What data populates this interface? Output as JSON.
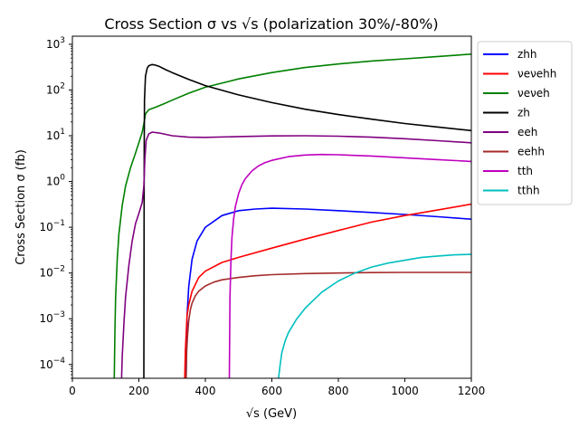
{
  "chart_data": {
    "type": "line",
    "title": "Cross Section σ vs √s (polarization 30%/-80%)",
    "xlabel": "√s (GeV)",
    "ylabel": "Cross Section σ (fb)",
    "xlim": [
      0,
      1200
    ],
    "ylim": [
      5e-05,
      1500
    ],
    "yscale": "log",
    "grid": false,
    "legend": "outside-right",
    "x_ticks": [
      0,
      200,
      400,
      600,
      800,
      1000,
      1200
    ],
    "x_tick_labels": [
      "0",
      "200",
      "400",
      "600",
      "800",
      "1000",
      "1200"
    ],
    "y_ticks": [
      0.0001,
      0.001,
      0.01,
      0.1,
      1,
      10,
      100,
      1000
    ],
    "y_tick_labels": [
      {
        "base": "10",
        "exp": "−4"
      },
      {
        "base": "10",
        "exp": "−3"
      },
      {
        "base": "10",
        "exp": "−2"
      },
      {
        "base": "10",
        "exp": "−1"
      },
      {
        "base": "10",
        "exp": "0"
      },
      {
        "base": "10",
        "exp": "1"
      },
      {
        "base": "10",
        "exp": "2"
      },
      {
        "base": "10",
        "exp": "3"
      }
    ],
    "series": [
      {
        "name": "zhh",
        "color": "#0000ff",
        "x": [
          342,
          345,
          350,
          360,
          375,
          400,
          450,
          500,
          550,
          600,
          700,
          800,
          900,
          1000,
          1100,
          1200
        ],
        "y": [
          5e-05,
          0.0012,
          0.005,
          0.02,
          0.05,
          0.1,
          0.18,
          0.23,
          0.25,
          0.26,
          0.25,
          0.23,
          0.21,
          0.19,
          0.17,
          0.15
        ]
      },
      {
        "name": "νeνehh",
        "color": "#ff0000",
        "x": [
          338,
          340,
          345,
          350,
          360,
          380,
          400,
          450,
          500,
          600,
          700,
          800,
          900,
          1000,
          1100,
          1200
        ],
        "y": [
          5e-05,
          0.0002,
          0.0012,
          0.002,
          0.004,
          0.008,
          0.011,
          0.017,
          0.022,
          0.035,
          0.055,
          0.085,
          0.13,
          0.18,
          0.24,
          0.32
        ]
      },
      {
        "name": "νeνeh",
        "color": "#008000",
        "x": [
          126,
          128,
          130,
          135,
          140,
          150,
          160,
          175,
          190,
          200,
          210,
          216,
          220,
          230,
          250,
          275,
          300,
          350,
          400,
          500,
          600,
          700,
          800,
          900,
          1000,
          1100,
          1200
        ],
        "y": [
          5e-05,
          0.0005,
          0.003,
          0.02,
          0.07,
          0.3,
          0.8,
          2.0,
          4.2,
          7.0,
          12,
          20,
          30,
          37,
          42,
          50,
          60,
          85,
          115,
          175,
          240,
          310,
          370,
          430,
          480,
          540,
          610
        ]
      },
      {
        "name": "zh",
        "color": "#000000",
        "x": [
          215,
          216,
          217,
          220,
          225,
          230,
          240,
          250,
          260,
          280,
          300,
          350,
          400,
          500,
          600,
          700,
          800,
          900,
          1000,
          1100,
          1200
        ],
        "y": [
          5e-05,
          5,
          60,
          200,
          300,
          340,
          360,
          350,
          330,
          280,
          240,
          170,
          125,
          78,
          53,
          38,
          29,
          23,
          18.5,
          15.5,
          13
        ]
      },
      {
        "name": "eeh",
        "color": "#800080",
        "x": [
          148,
          150,
          155,
          160,
          170,
          180,
          190,
          200,
          210,
          215,
          218,
          222,
          230,
          240,
          260,
          300,
          350,
          400,
          500,
          600,
          700,
          800,
          900,
          1000,
          1100,
          1200
        ],
        "y": [
          5e-05,
          0.00015,
          0.0008,
          0.003,
          0.015,
          0.05,
          0.12,
          0.2,
          0.35,
          0.8,
          3,
          8,
          11,
          12,
          11.5,
          10,
          9.3,
          9.2,
          9.6,
          9.9,
          10,
          9.8,
          9.3,
          8.6,
          7.8,
          7
        ]
      },
      {
        "name": "eehh",
        "color": "#a52a2a",
        "x": [
          342,
          344,
          346,
          350,
          355,
          360,
          370,
          380,
          400,
          425,
          450,
          500,
          550,
          600,
          700,
          800,
          900,
          1000,
          1100,
          1200
        ],
        "y": [
          5e-05,
          0.0002,
          0.0004,
          0.0009,
          0.0016,
          0.0022,
          0.0032,
          0.004,
          0.0052,
          0.0063,
          0.0071,
          0.008,
          0.0087,
          0.0092,
          0.0097,
          0.01,
          0.0102,
          0.0103,
          0.0103,
          0.0103
        ]
      },
      {
        "name": "tth",
        "color": "#bf00bf",
        "x": [
          472,
          474,
          477,
          480,
          485,
          490,
          500,
          510,
          520,
          540,
          560,
          580,
          600,
          650,
          700,
          750,
          800,
          900,
          1000,
          1100,
          1200
        ],
        "y": [
          5e-05,
          0.003,
          0.02,
          0.06,
          0.15,
          0.28,
          0.55,
          0.85,
          1.15,
          1.7,
          2.2,
          2.6,
          2.9,
          3.5,
          3.8,
          3.9,
          3.85,
          3.6,
          3.3,
          3.0,
          2.75
        ]
      },
      {
        "name": "tthh",
        "color": "#00bfbf",
        "x": [
          620,
          625,
          630,
          640,
          650,
          675,
          700,
          750,
          800,
          850,
          900,
          950,
          1000,
          1050,
          1100,
          1150,
          1200
        ],
        "y": [
          5e-05,
          0.0001,
          0.00018,
          0.00033,
          0.0005,
          0.001,
          0.0017,
          0.0038,
          0.0067,
          0.01,
          0.0135,
          0.0165,
          0.019,
          0.022,
          0.0235,
          0.025,
          0.0255
        ]
      }
    ]
  }
}
